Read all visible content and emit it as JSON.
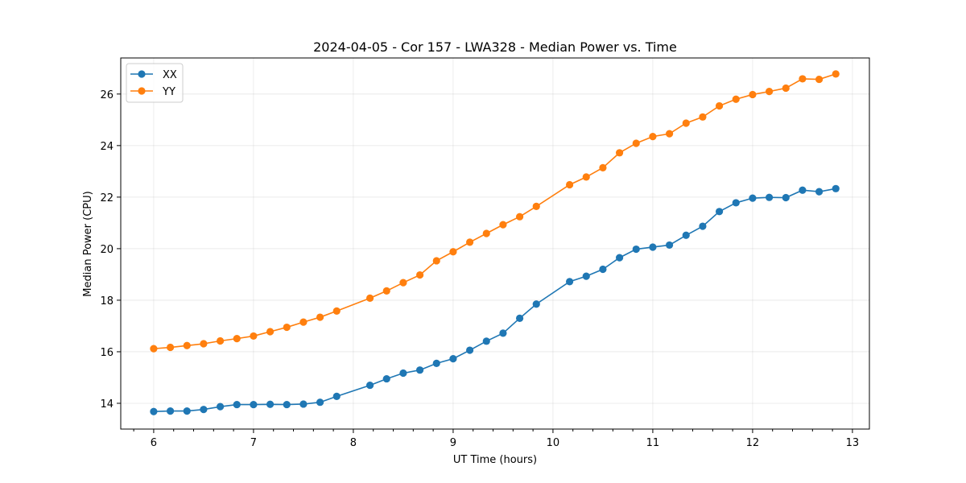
{
  "chart_data": {
    "type": "line",
    "title": "2024-04-05 - Cor 157 - LWA328 - Median Power vs. Time",
    "xlabel": "UT Time (hours)",
    "ylabel": "Median Power (CPU)",
    "xlim": [
      5.67,
      13.17
    ],
    "ylim": [
      13.0,
      27.4
    ],
    "xticks": [
      6,
      7,
      8,
      9,
      10,
      11,
      12,
      13
    ],
    "xtick_labels": [
      "6",
      "7",
      "8",
      "9",
      "10",
      "11",
      "12",
      "13"
    ],
    "yticks": [
      14,
      16,
      18,
      20,
      22,
      24,
      26
    ],
    "ytick_labels": [
      "14",
      "16",
      "18",
      "20",
      "22",
      "24",
      "26"
    ],
    "grid": true,
    "legend_position": "top-left",
    "series": [
      {
        "name": "XX",
        "color": "#1f77b4",
        "x": [
          6.0,
          6.1667,
          6.3333,
          6.5,
          6.6667,
          6.8333,
          7.0,
          7.1667,
          7.3333,
          7.5,
          7.6667,
          7.8333,
          8.1667,
          8.3333,
          8.5,
          8.6667,
          8.8333,
          9.0,
          9.1667,
          9.3333,
          9.5,
          9.6667,
          9.8333,
          10.1667,
          10.3333,
          10.5,
          10.6667,
          10.8333,
          11.0,
          11.1667,
          11.3333,
          11.5,
          11.6667,
          11.8333,
          12.0,
          12.1667,
          12.3333,
          12.5,
          12.6667,
          12.8333
        ],
        "values": [
          13.68,
          13.7,
          13.7,
          13.76,
          13.87,
          13.95,
          13.95,
          13.96,
          13.95,
          13.97,
          14.04,
          14.27,
          14.7,
          14.95,
          15.17,
          15.29,
          15.55,
          15.73,
          16.06,
          16.41,
          16.72,
          17.3,
          17.85,
          18.72,
          18.93,
          19.2,
          19.65,
          19.98,
          20.06,
          20.14,
          20.52,
          20.87,
          21.44,
          21.78,
          21.96,
          21.99,
          21.98,
          22.27,
          22.21,
          22.33
        ]
      },
      {
        "name": "YY",
        "color": "#ff7f0e",
        "x": [
          6.0,
          6.1667,
          6.3333,
          6.5,
          6.6667,
          6.8333,
          7.0,
          7.1667,
          7.3333,
          7.5,
          7.6667,
          7.8333,
          8.1667,
          8.3333,
          8.5,
          8.6667,
          8.8333,
          9.0,
          9.1667,
          9.3333,
          9.5,
          9.6667,
          9.8333,
          10.1667,
          10.3333,
          10.5,
          10.6667,
          10.8333,
          11.0,
          11.1667,
          11.3333,
          11.5,
          11.6667,
          11.8333,
          12.0,
          12.1667,
          12.3333,
          12.5,
          12.6667,
          12.8333
        ],
        "values": [
          16.12,
          16.17,
          16.24,
          16.31,
          16.42,
          16.51,
          16.61,
          16.78,
          16.95,
          17.15,
          17.34,
          17.58,
          18.08,
          18.36,
          18.68,
          18.98,
          19.53,
          19.88,
          20.25,
          20.59,
          20.93,
          21.24,
          21.64,
          22.48,
          22.78,
          23.14,
          23.72,
          24.09,
          24.35,
          24.46,
          24.87,
          25.11,
          25.54,
          25.8,
          25.98,
          26.1,
          26.23,
          26.59,
          26.57,
          26.78
        ]
      }
    ]
  }
}
